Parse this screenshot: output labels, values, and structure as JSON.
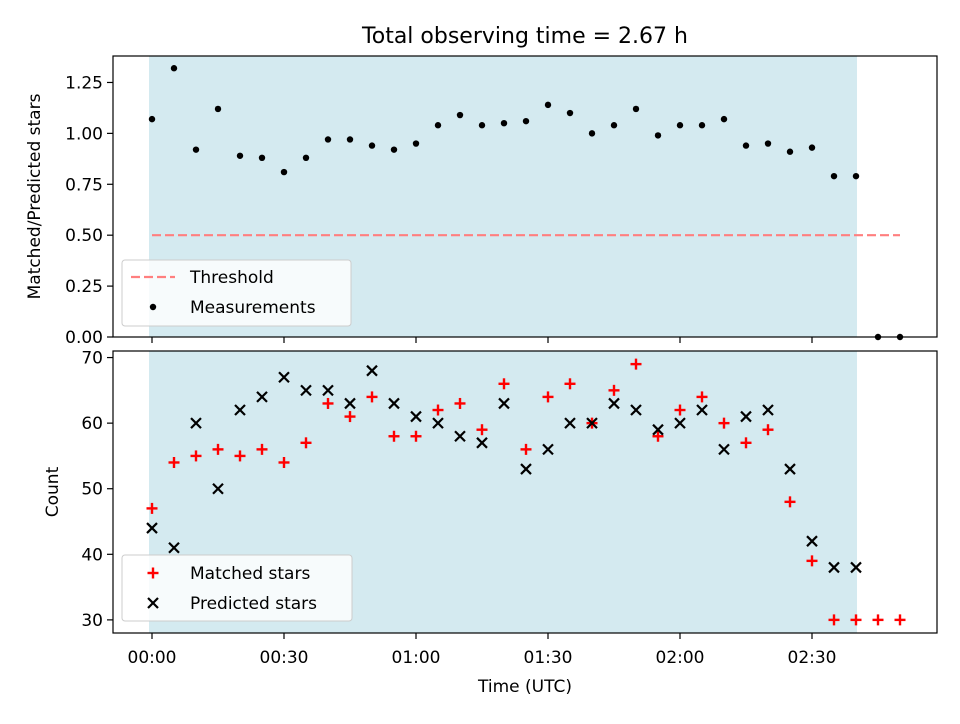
{
  "title": "Total observing time = 2.67 h",
  "colors": {
    "shade": "#d4eaf0",
    "threshold": "#ff7f7f",
    "matched": "#ff0000",
    "predicted": "#000000",
    "measurement": "#000000"
  },
  "chart_data": [
    {
      "type": "scatter",
      "panel": "top",
      "xlabel": "",
      "ylabel": "Matched/Predicted stars",
      "ylim": [
        0,
        1.38
      ],
      "yticks": [
        "0.00",
        "0.25",
        "0.50",
        "0.75",
        "1.00",
        "1.25"
      ],
      "x_unit": "minutes after 00:00 UTC",
      "shaded_span_minutes": [
        0,
        160
      ],
      "threshold": 0.5,
      "threshold_x_span_minutes": [
        0,
        170
      ],
      "legend": {
        "position": "lower-left",
        "entries": [
          "Threshold",
          "Measurements"
        ]
      },
      "series": [
        {
          "name": "Measurements",
          "marker": "dot",
          "x": [
            0,
            5,
            10,
            15,
            20,
            25,
            30,
            35,
            40,
            45,
            50,
            55,
            60,
            65,
            70,
            75,
            80,
            85,
            90,
            95,
            100,
            105,
            110,
            115,
            120,
            125,
            130,
            135,
            140,
            145,
            150,
            155,
            160,
            165,
            170
          ],
          "y": [
            1.07,
            1.32,
            0.92,
            1.12,
            0.89,
            0.88,
            0.81,
            0.88,
            0.97,
            0.97,
            0.94,
            0.92,
            0.95,
            1.04,
            1.09,
            1.04,
            1.05,
            1.06,
            1.14,
            1.1,
            1.0,
            1.04,
            1.12,
            0.99,
            1.04,
            1.04,
            1.07,
            0.94,
            0.95,
            0.91,
            0.93,
            0.79,
            0.79,
            0.0,
            0.0
          ]
        }
      ]
    },
    {
      "type": "scatter",
      "panel": "bottom",
      "xlabel": "Time (UTC)",
      "ylabel": "Count",
      "ylim": [
        28,
        71
      ],
      "yticks": [
        "30",
        "40",
        "50",
        "60",
        "70"
      ],
      "xticks": [
        "00:00",
        "00:30",
        "01:00",
        "01:30",
        "02:00",
        "02:30"
      ],
      "x_unit": "minutes after 00:00 UTC",
      "shaded_span_minutes": [
        0,
        160
      ],
      "legend": {
        "position": "lower-left",
        "entries": [
          "Matched stars",
          "Predicted stars"
        ]
      },
      "series": [
        {
          "name": "Matched stars",
          "marker": "plus",
          "x": [
            0,
            5,
            10,
            15,
            20,
            25,
            30,
            35,
            40,
            45,
            50,
            55,
            60,
            65,
            70,
            75,
            80,
            85,
            90,
            95,
            100,
            105,
            110,
            115,
            120,
            125,
            130,
            135,
            140,
            145,
            150,
            155,
            160,
            165,
            170
          ],
          "y": [
            47,
            54,
            55,
            56,
            55,
            56,
            54,
            57,
            63,
            61,
            64,
            58,
            58,
            62,
            63,
            59,
            66,
            56,
            64,
            66,
            60,
            65,
            69,
            58,
            62,
            64,
            60,
            57,
            59,
            48,
            39,
            30,
            30,
            30,
            30
          ]
        },
        {
          "name": "Predicted stars",
          "marker": "x",
          "x": [
            0,
            5,
            10,
            15,
            20,
            25,
            30,
            35,
            40,
            45,
            50,
            55,
            60,
            65,
            70,
            75,
            80,
            85,
            90,
            95,
            100,
            105,
            110,
            115,
            120,
            125,
            130,
            135,
            140,
            145,
            150,
            155,
            160
          ],
          "y": [
            44,
            41,
            60,
            50,
            62,
            64,
            67,
            65,
            65,
            63,
            68,
            63,
            61,
            60,
            58,
            57,
            63,
            53,
            56,
            60,
            60,
            63,
            62,
            59,
            60,
            62,
            56,
            61,
            62,
            53,
            42,
            38,
            38
          ]
        }
      ]
    }
  ]
}
